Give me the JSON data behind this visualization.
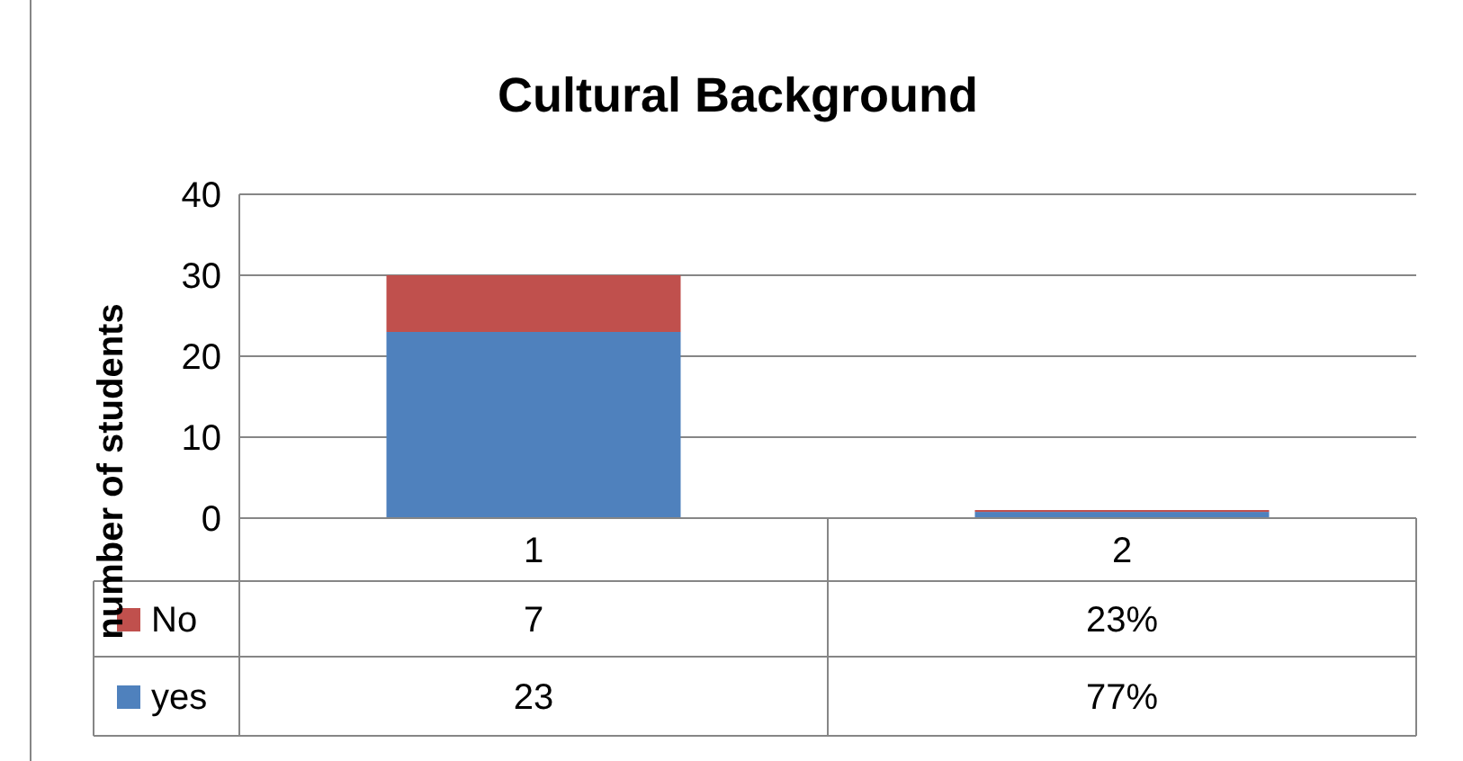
{
  "chart_data": {
    "type": "bar",
    "title": "Cultural Background",
    "ylabel": "number of students",
    "categories": [
      "1",
      "2"
    ],
    "stacked": true,
    "grid": "y",
    "legend": "bottom",
    "ylim": [
      0,
      40
    ],
    "yticks": [
      0,
      10,
      20,
      30,
      40
    ],
    "series": [
      {
        "name": "yes",
        "color": "#4f81bd",
        "values": [
          23,
          0.77
        ],
        "value_labels": [
          "23",
          "77%"
        ]
      },
      {
        "name": "No",
        "color": "#c0504d",
        "values": [
          7,
          0.23
        ],
        "value_labels": [
          "7",
          "23%"
        ]
      }
    ]
  }
}
